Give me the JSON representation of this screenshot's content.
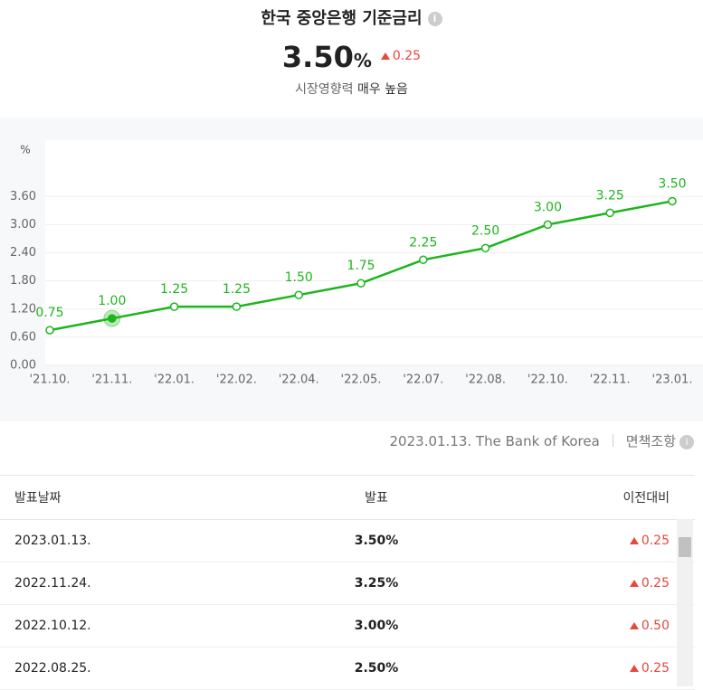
{
  "header": {
    "title": "한국 중앙은행 기준금리",
    "info": "i",
    "value": "3.50",
    "unit": "%",
    "change": "0.25",
    "influence_label": "시장영향력",
    "influence": "매우 높음"
  },
  "chart_data": {
    "type": "line",
    "unit": "%",
    "categories": [
      "'21.10.",
      "'21.11.",
      "'22.01.",
      "'22.02.",
      "'22.04.",
      "'22.05.",
      "'22.07.",
      "'22.08.",
      "'22.10.",
      "'22.11.",
      "'23.01."
    ],
    "series": [
      {
        "name": "기준금리",
        "color": "#1db51d",
        "values": [
          0.75,
          1.0,
          1.25,
          1.25,
          1.5,
          1.75,
          2.25,
          2.5,
          3.0,
          3.25,
          3.5
        ],
        "value_labels": [
          "0.75",
          "1.00",
          "1.25",
          "1.25",
          "1.50",
          "1.75",
          "2.25",
          "2.50",
          "3.00",
          "3.25",
          "3.50"
        ]
      }
    ],
    "ylim": [
      0,
      4.8
    ],
    "yticks": [
      {
        "value": 0,
        "label": "0.00"
      },
      {
        "value": 0.6,
        "label": "0.60"
      },
      {
        "value": 1.2,
        "label": "1.20"
      },
      {
        "value": 1.8,
        "label": "1.80"
      },
      {
        "value": 2.4,
        "label": "2.40"
      },
      {
        "value": 3,
        "label": "3.00"
      },
      {
        "value": 3.6,
        "label": "3.60"
      }
    ],
    "grid": true,
    "highlight": 1
  },
  "source": "2023.01.13. The Bank of Korea",
  "disclaimer": "면책조항",
  "disclaimer_icon": "i",
  "table": {
    "header": [
      "발표날짜",
      "발표",
      "이전대비"
    ],
    "rows": [
      [
        "2023.01.13.",
        "3.50%",
        "0.25"
      ],
      [
        "2022.11.24.",
        "3.25%",
        "0.25"
      ],
      [
        "2022.10.12.",
        "3.00%",
        "0.50"
      ],
      [
        "2022.08.25.",
        "2.50%",
        "0.25"
      ]
    ]
  }
}
